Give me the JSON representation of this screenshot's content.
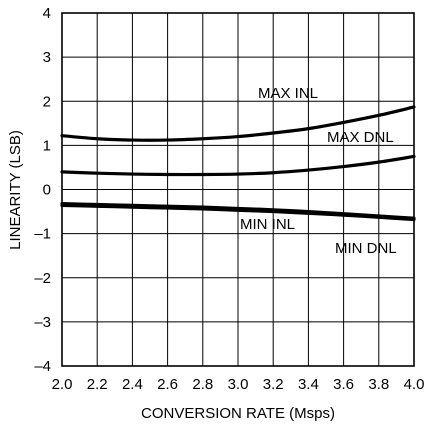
{
  "chart_data": {
    "type": "line",
    "title": "",
    "xlabel": "CONVERSION RATE (Msps)",
    "ylabel": "LINEARITY (LSB)",
    "xlim": [
      2.0,
      4.0
    ],
    "ylim": [
      -4,
      4
    ],
    "xticks": [
      2.0,
      2.2,
      2.4,
      2.6,
      2.8,
      3.0,
      3.2,
      3.4,
      3.6,
      3.8,
      4.0
    ],
    "xtick_labels": [
      "2.0",
      "2.2",
      "2.4",
      "2.6",
      "2.8",
      "3.0",
      "3.2",
      "3.4",
      "3.6",
      "3.8",
      "4.0"
    ],
    "yticks": [
      4,
      3,
      2,
      1,
      0,
      -1,
      -2,
      -3,
      -4
    ],
    "ytick_labels": [
      "4",
      "3",
      "2",
      "1",
      "0",
      "–1",
      "–2",
      "–3",
      "–4"
    ],
    "grid": true,
    "series": [
      {
        "name": "MAX INL",
        "x": [
          2.0,
          2.2,
          2.4,
          2.6,
          2.8,
          3.0,
          3.2,
          3.4,
          3.6,
          3.8,
          4.0
        ],
        "y": [
          1.22,
          1.15,
          1.12,
          1.12,
          1.15,
          1.2,
          1.28,
          1.38,
          1.52,
          1.68,
          1.87
        ],
        "color": "#000000"
      },
      {
        "name": "MAX DNL",
        "x": [
          2.0,
          2.2,
          2.4,
          2.6,
          2.8,
          3.0,
          3.2,
          3.4,
          3.6,
          3.8,
          4.0
        ],
        "y": [
          0.4,
          0.37,
          0.35,
          0.34,
          0.34,
          0.35,
          0.38,
          0.44,
          0.52,
          0.62,
          0.75
        ],
        "color": "#000000"
      },
      {
        "name": "MIN INL",
        "x": [
          2.0,
          2.2,
          2.4,
          2.6,
          2.8,
          3.0,
          3.2,
          3.4,
          3.6,
          3.8,
          4.0
        ],
        "y": [
          -0.32,
          -0.34,
          -0.36,
          -0.38,
          -0.4,
          -0.43,
          -0.46,
          -0.5,
          -0.55,
          -0.6,
          -0.65
        ],
        "color": "#000000"
      },
      {
        "name": "MIN DNL",
        "x": [
          2.0,
          2.2,
          2.4,
          2.6,
          2.8,
          3.0,
          3.2,
          3.4,
          3.6,
          3.8,
          4.0
        ],
        "y": [
          -0.36,
          -0.38,
          -0.4,
          -0.42,
          -0.44,
          -0.47,
          -0.5,
          -0.54,
          -0.58,
          -0.63,
          -0.68
        ],
        "color": "#000000"
      }
    ],
    "annotations": [
      "MAX INL",
      "MAX DNL",
      "MIN INL",
      "MIN DNL"
    ]
  }
}
